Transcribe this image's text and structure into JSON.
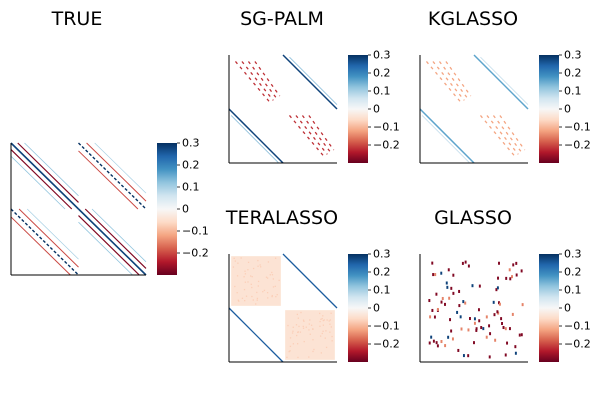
{
  "figure": {
    "description_free": true
  },
  "colors": {
    "cmap_stops": [
      "#67001f",
      "#b2182b",
      "#d6604d",
      "#f4a582",
      "#fddbc7",
      "#f7f7f7",
      "#d1e5f0",
      "#92c5de",
      "#4393c3",
      "#2166ac",
      "#053061"
    ]
  },
  "chart_data": [
    {
      "type": "heatmap",
      "title": "TRUE",
      "pattern": "true",
      "clim": [
        -0.3,
        0.3
      ],
      "colorbar_ticks": [
        {
          "value": 0.3,
          "label": "0.3"
        },
        {
          "value": 0.2,
          "label": "0.2"
        },
        {
          "value": 0.1,
          "label": "0.1"
        },
        {
          "value": 0.0,
          "label": "0"
        },
        {
          "value": -0.1,
          "label": "−0.1"
        },
        {
          "value": -0.2,
          "label": "−0.2"
        }
      ]
    },
    {
      "type": "heatmap",
      "title": "SG-PALM",
      "pattern": "sgpalm",
      "clim": [
        -0.3,
        0.3
      ],
      "colorbar_ticks": [
        {
          "value": 0.3,
          "label": "0.3"
        },
        {
          "value": 0.2,
          "label": "0.2"
        },
        {
          "value": 0.1,
          "label": "0.1"
        },
        {
          "value": 0.0,
          "label": "0"
        },
        {
          "value": -0.1,
          "label": "−0.1"
        },
        {
          "value": -0.2,
          "label": "−0.2"
        }
      ]
    },
    {
      "type": "heatmap",
      "title": "KGLASSO",
      "pattern": "kglasso",
      "clim": [
        -0.3,
        0.3
      ],
      "colorbar_ticks": [
        {
          "value": 0.3,
          "label": "0.3"
        },
        {
          "value": 0.2,
          "label": "0.2"
        },
        {
          "value": 0.1,
          "label": "0.1"
        },
        {
          "value": 0.0,
          "label": "0"
        },
        {
          "value": -0.1,
          "label": "−0.1"
        },
        {
          "value": -0.2,
          "label": "−0.2"
        }
      ]
    },
    {
      "type": "heatmap",
      "title": "TERALASSO",
      "pattern": "teralasso",
      "clim": [
        -0.3,
        0.3
      ],
      "colorbar_ticks": [
        {
          "value": 0.3,
          "label": "0.3"
        },
        {
          "value": 0.2,
          "label": "0.2"
        },
        {
          "value": 0.1,
          "label": "0.1"
        },
        {
          "value": 0.0,
          "label": "0"
        },
        {
          "value": -0.1,
          "label": "−0.1"
        },
        {
          "value": -0.2,
          "label": "−0.2"
        }
      ]
    },
    {
      "type": "heatmap",
      "title": "GLASSO",
      "pattern": "glasso",
      "clim": [
        -0.3,
        0.3
      ],
      "colorbar_ticks": [
        {
          "value": 0.3,
          "label": "0.3"
        },
        {
          "value": 0.2,
          "label": "0.2"
        },
        {
          "value": 0.1,
          "label": "0.1"
        },
        {
          "value": 0.0,
          "label": "0"
        },
        {
          "value": -0.1,
          "label": "−0.1"
        },
        {
          "value": -0.2,
          "label": "−0.2"
        }
      ]
    }
  ]
}
